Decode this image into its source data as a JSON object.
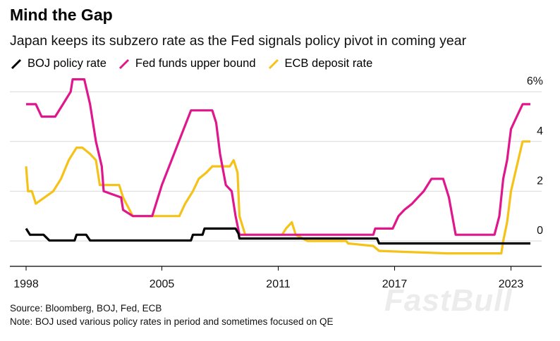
{
  "header": {
    "title": "Mind the Gap",
    "subtitle": "Japan keeps its subzero rate as the Fed signals policy pivot in coming year"
  },
  "footer": {
    "source": "Source: Bloomberg, BOJ, Fed, ECB",
    "note": "Note: BOJ used various policy rates in period and sometimes focused on QE"
  },
  "watermark": "FastBull",
  "colors": {
    "boj": "#000000",
    "fed": "#e0178c",
    "ecb": "#f5c218",
    "grid": "#d9d9d9",
    "axis": "#000000"
  },
  "chart_data": {
    "type": "line",
    "title": "Mind the Gap",
    "subtitle": "Japan keeps its subzero rate as the Fed signals policy pivot in coming year",
    "xlabel": "",
    "ylabel": "",
    "xlim": [
      1998,
      2024.5
    ],
    "ylim": [
      -1,
      6
    ],
    "x_ticks": [
      "1998",
      "2005",
      "2011",
      "2017",
      "2023"
    ],
    "y_ticks": [
      {
        "value": 0,
        "label": "0"
      },
      {
        "value": 2,
        "label": "2"
      },
      {
        "value": 4,
        "label": "4"
      },
      {
        "value": 6,
        "label": "6%"
      }
    ],
    "grid": "horizontal",
    "legend_position": "top-left",
    "series": [
      {
        "name": "BOJ policy rate",
        "color": "#000000",
        "points": [
          [
            1998.0,
            0.5
          ],
          [
            1998.2,
            0.25
          ],
          [
            1998.9,
            0.25
          ],
          [
            1999.2,
            0.02
          ],
          [
            2000.5,
            0.02
          ],
          [
            2000.6,
            0.25
          ],
          [
            2001.1,
            0.25
          ],
          [
            2001.3,
            0.02
          ],
          [
            2006.5,
            0.02
          ],
          [
            2006.6,
            0.25
          ],
          [
            2007.1,
            0.25
          ],
          [
            2007.2,
            0.5
          ],
          [
            2008.8,
            0.5
          ],
          [
            2008.95,
            0.3
          ],
          [
            2009.0,
            0.1
          ],
          [
            2016.1,
            0.1
          ],
          [
            2016.2,
            -0.1
          ],
          [
            2024.0,
            -0.1
          ]
        ]
      },
      {
        "name": "Fed funds upper bound",
        "color": "#e0178c",
        "points": [
          [
            1998.0,
            5.5
          ],
          [
            1998.5,
            5.5
          ],
          [
            1998.8,
            5.0
          ],
          [
            1999.5,
            5.0
          ],
          [
            1999.9,
            5.5
          ],
          [
            2000.3,
            6.0
          ],
          [
            2000.4,
            6.5
          ],
          [
            2001.0,
            6.5
          ],
          [
            2001.3,
            5.5
          ],
          [
            2001.6,
            4.0
          ],
          [
            2001.9,
            3.0
          ],
          [
            2002.0,
            2.0
          ],
          [
            2002.9,
            1.75
          ],
          [
            2003.0,
            1.25
          ],
          [
            2003.5,
            1.0
          ],
          [
            2004.5,
            1.0
          ],
          [
            2005.0,
            2.25
          ],
          [
            2005.5,
            3.25
          ],
          [
            2006.0,
            4.25
          ],
          [
            2006.5,
            5.25
          ],
          [
            2007.6,
            5.25
          ],
          [
            2007.8,
            4.75
          ],
          [
            2008.0,
            3.5
          ],
          [
            2008.3,
            2.25
          ],
          [
            2008.6,
            2.0
          ],
          [
            2008.8,
            1.0
          ],
          [
            2009.0,
            0.25
          ],
          [
            2015.9,
            0.25
          ],
          [
            2016.0,
            0.5
          ],
          [
            2016.9,
            0.5
          ],
          [
            2017.2,
            1.0
          ],
          [
            2017.5,
            1.25
          ],
          [
            2017.9,
            1.5
          ],
          [
            2018.2,
            1.75
          ],
          [
            2018.5,
            2.0
          ],
          [
            2018.9,
            2.5
          ],
          [
            2019.5,
            2.5
          ],
          [
            2019.7,
            2.0
          ],
          [
            2019.8,
            1.75
          ],
          [
            2020.15,
            0.25
          ],
          [
            2022.15,
            0.25
          ],
          [
            2022.4,
            1.0
          ],
          [
            2022.6,
            2.5
          ],
          [
            2022.8,
            3.25
          ],
          [
            2023.0,
            4.5
          ],
          [
            2023.3,
            5.0
          ],
          [
            2023.6,
            5.5
          ],
          [
            2024.0,
            5.5
          ]
        ]
      },
      {
        "name": "ECB deposit rate",
        "color": "#f5c218",
        "points": [
          [
            1998.0,
            3.0
          ],
          [
            1998.1,
            2.0
          ],
          [
            1998.3,
            2.0
          ],
          [
            1998.5,
            1.5
          ],
          [
            1999.4,
            2.0
          ],
          [
            1999.8,
            2.5
          ],
          [
            2000.2,
            3.25
          ],
          [
            2000.6,
            3.75
          ],
          [
            2000.9,
            3.75
          ],
          [
            2001.3,
            3.5
          ],
          [
            2001.6,
            3.25
          ],
          [
            2001.8,
            2.25
          ],
          [
            2002.8,
            2.25
          ],
          [
            2003.0,
            1.75
          ],
          [
            2003.5,
            1.0
          ],
          [
            2005.9,
            1.0
          ],
          [
            2006.2,
            1.5
          ],
          [
            2006.6,
            2.0
          ],
          [
            2006.9,
            2.5
          ],
          [
            2007.3,
            2.75
          ],
          [
            2007.6,
            3.0
          ],
          [
            2008.5,
            3.0
          ],
          [
            2008.7,
            3.25
          ],
          [
            2008.9,
            2.75
          ],
          [
            2009.0,
            1.0
          ],
          [
            2009.3,
            0.25
          ],
          [
            2011.2,
            0.25
          ],
          [
            2011.4,
            0.5
          ],
          [
            2011.7,
            0.75
          ],
          [
            2011.9,
            0.25
          ],
          [
            2012.5,
            0.0
          ],
          [
            2014.5,
            0.0
          ],
          [
            2014.6,
            -0.1
          ],
          [
            2015.9,
            -0.2
          ],
          [
            2016.2,
            -0.4
          ],
          [
            2019.7,
            -0.5
          ],
          [
            2022.5,
            -0.5
          ],
          [
            2022.6,
            0.0
          ],
          [
            2022.8,
            0.75
          ],
          [
            2023.0,
            2.0
          ],
          [
            2023.3,
            3.0
          ],
          [
            2023.6,
            4.0
          ],
          [
            2024.0,
            4.0
          ]
        ]
      }
    ]
  }
}
